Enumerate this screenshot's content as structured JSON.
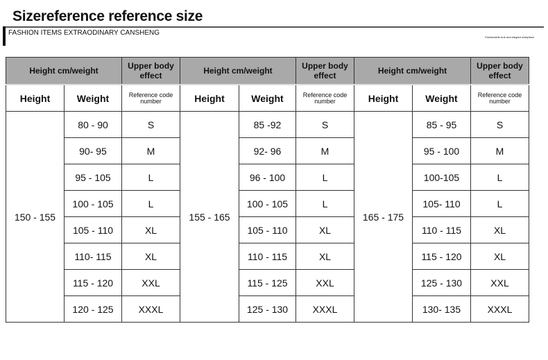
{
  "title": "Sizereference reference size",
  "subtitle": "FASHION  ITEMS EXTRAODINARY  CANSHENG",
  "slogan": "Fashionable true and elegant workplace",
  "header": {
    "hw": "Height cm/weight",
    "effect": "Upper body effect",
    "height": "Height",
    "weight": "Weight",
    "ref": "Reference code number"
  },
  "groups": [
    {
      "height": "150 - 155",
      "rows": [
        [
          "80 - 90",
          "S"
        ],
        [
          "90- 95",
          "M"
        ],
        [
          "95 - 105",
          "L"
        ],
        [
          "100 - 105",
          "L"
        ],
        [
          "105 - 110",
          "XL"
        ],
        [
          "110- 115",
          "XL"
        ],
        [
          "115 - 120",
          "XXL"
        ],
        [
          "120 - 125",
          "XXXL"
        ]
      ]
    },
    {
      "height": "155 - 165",
      "rows": [
        [
          "85 -92",
          "S"
        ],
        [
          "92- 96",
          "M"
        ],
        [
          "96 - 100",
          "L"
        ],
        [
          "100 - 105",
          "L"
        ],
        [
          "105 - 110",
          "XL"
        ],
        [
          "110 - 115",
          "XL"
        ],
        [
          "115 - 125",
          "XXL"
        ],
        [
          "125 - 130",
          "XXXL"
        ]
      ]
    },
    {
      "height": "165 - 175",
      "rows": [
        [
          "85 - 95",
          "S"
        ],
        [
          "95 - 100",
          "M"
        ],
        [
          "100-105",
          "L"
        ],
        [
          "105- 110",
          "L"
        ],
        [
          "110 - 115",
          "XL"
        ],
        [
          "115 - 120",
          "XL"
        ],
        [
          "125 - 130",
          "XXL"
        ],
        [
          "130- 135",
          "XXXL"
        ]
      ]
    }
  ]
}
